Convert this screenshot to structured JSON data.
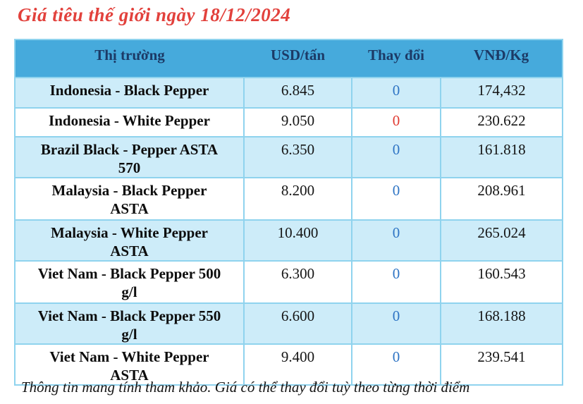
{
  "chart_data": {
    "type": "table",
    "title": "Giá tiêu thế giới ngày 18/12/2024",
    "columns": [
      "Thị trường",
      "USD/tấn",
      "Thay đổi",
      "VNĐ/Kg"
    ],
    "rows": [
      [
        "Indonesia - Black Pepper",
        "6.845",
        "0",
        "174,432"
      ],
      [
        "Indonesia - White Pepper",
        "9.050",
        "0",
        "230.622"
      ],
      [
        "Brazil Black - Pepper ASTA\n570",
        "6.350",
        "0",
        "161.818"
      ],
      [
        "Malaysia - Black Pepper\nASTA",
        "8.200",
        "0",
        "208.961"
      ],
      [
        "Malaysia - White Pepper\nASTA",
        "10.400",
        "0",
        "265.024"
      ],
      [
        "Viet Nam - Black Pepper 500\ng/l",
        "6.300",
        "0",
        "160.543"
      ],
      [
        "Viet Nam - Black Pepper 550\ng/l",
        "6.600",
        "0",
        "168.188"
      ],
      [
        "Viet Nam - White Pepper\nASTA",
        "9.400",
        "0",
        "239.541"
      ]
    ],
    "change_colors": [
      "#2e74c4",
      "#e03a31",
      "#2e74c4",
      "#2e74c4",
      "#2e74c4",
      "#2e74c4",
      "#2e74c4",
      "#2e74c4"
    ],
    "note": "Thông tin mang tính tham khảo. Giá có thể thay đổi tuỳ theo từng thời điểm",
    "layout": {
      "legend": "none",
      "grid": "cell-borders"
    }
  },
  "colors": {
    "title_red": "#e2413c",
    "header_bg": "#46aadc",
    "header_text": "#1c3a66",
    "row_alt_bg": "#cdecf9",
    "border": "#8fd3ee",
    "change_blue": "#2e74c4",
    "change_red": "#e03a31"
  }
}
